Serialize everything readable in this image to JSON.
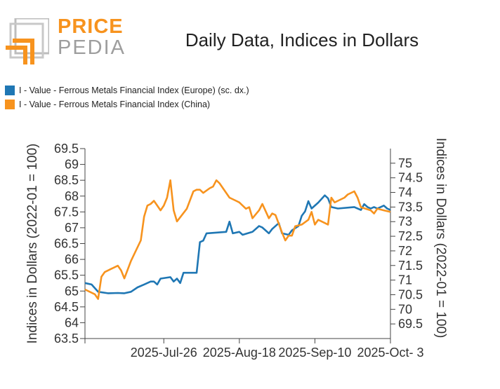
{
  "logo": {
    "line1": "PRICE",
    "line2": "PEDIA",
    "accent": "#f7931e",
    "gray": "#9e9e9e"
  },
  "title": "Daily Data, Indices in Dollars",
  "chart_data": {
    "type": "line",
    "title": "Daily Data, Indices in Dollars",
    "x_tick_labels": [
      "2025-Jul-26",
      "2025-Aug-18",
      "2025-Sep-10",
      "2025-Oct- 3"
    ],
    "x_range": [
      "2025-07-02",
      "2025-10-03"
    ],
    "y_left": {
      "label": "Indices in Dollars (2022-01 = 100)",
      "range": [
        63.5,
        69.5
      ],
      "ticks": [
        63.5,
        64,
        64.5,
        65,
        65.5,
        66,
        66.5,
        67,
        67.5,
        68,
        68.5,
        69,
        69.5
      ]
    },
    "y_right": {
      "label": "Indices in Dollars (2022-01 = 100)",
      "range": [
        69,
        75.5
      ],
      "ticks": [
        69.5,
        70,
        70.5,
        71,
        71.5,
        72,
        72.5,
        73,
        73.5,
        74,
        74.5,
        75
      ]
    },
    "grid": false,
    "legend": "top-left",
    "series": [
      {
        "name": "I - Value - Ferrous Metals Financial Index (Europe) (sc. dx.)",
        "color": "#1f77b4",
        "axis": "right",
        "points": [
          [
            "2025-07-02",
            70.9
          ],
          [
            "2025-07-04",
            70.85
          ],
          [
            "2025-07-06",
            70.6
          ],
          [
            "2025-07-09",
            70.55
          ],
          [
            "2025-07-12",
            70.56
          ],
          [
            "2025-07-14",
            70.55
          ],
          [
            "2025-07-16",
            70.6
          ],
          [
            "2025-07-18",
            70.75
          ],
          [
            "2025-07-20",
            70.85
          ],
          [
            "2025-07-22",
            70.95
          ],
          [
            "2025-07-23",
            70.95
          ],
          [
            "2025-07-24",
            70.85
          ],
          [
            "2025-07-25",
            71.05
          ],
          [
            "2025-07-28",
            71.1
          ],
          [
            "2025-07-29",
            70.95
          ],
          [
            "2025-07-30",
            71.05
          ],
          [
            "2025-07-31",
            70.9
          ],
          [
            "2025-08-01",
            71.25
          ],
          [
            "2025-08-05",
            71.25
          ],
          [
            "2025-08-06",
            72.3
          ],
          [
            "2025-08-07",
            72.35
          ],
          [
            "2025-08-08",
            72.6
          ],
          [
            "2025-08-14",
            72.65
          ],
          [
            "2025-08-15",
            73
          ],
          [
            "2025-08-16",
            72.6
          ],
          [
            "2025-08-18",
            72.65
          ],
          [
            "2025-08-19",
            72.55
          ],
          [
            "2025-08-22",
            72.65
          ],
          [
            "2025-08-24",
            72.85
          ],
          [
            "2025-08-25",
            72.8
          ],
          [
            "2025-08-27",
            72.6
          ],
          [
            "2025-08-28",
            72.75
          ],
          [
            "2025-08-30",
            72.95
          ],
          [
            "2025-08-31",
            72.6
          ],
          [
            "2025-09-02",
            72.55
          ],
          [
            "2025-09-03",
            72.7
          ],
          [
            "2025-09-05",
            72.85
          ],
          [
            "2025-09-06",
            73.2
          ],
          [
            "2025-09-07",
            73.35
          ],
          [
            "2025-09-08",
            73.7
          ],
          [
            "2025-09-09",
            73.45
          ],
          [
            "2025-09-11",
            73.65
          ],
          [
            "2025-09-13",
            73.9
          ],
          [
            "2025-09-14",
            73.8
          ],
          [
            "2025-09-15",
            73.5
          ],
          [
            "2025-09-17",
            73.45
          ],
          [
            "2025-09-22",
            73.5
          ],
          [
            "2025-09-24",
            73.4
          ],
          [
            "2025-09-25",
            73.6
          ],
          [
            "2025-09-26",
            73.5
          ],
          [
            "2025-09-27",
            73.45
          ],
          [
            "2025-09-28",
            73.5
          ],
          [
            "2025-09-29",
            73.45
          ],
          [
            "2025-09-30",
            73.5
          ],
          [
            "2025-10-01",
            73.55
          ],
          [
            "2025-10-02",
            73.45
          ],
          [
            "2025-10-03",
            73.4
          ]
        ]
      },
      {
        "name": "I - Value - Ferrous Metals Financial Index (China)",
        "color": "#f7931e",
        "axis": "left",
        "points": [
          [
            "2025-07-02",
            65.05
          ],
          [
            "2025-07-05",
            64.9
          ],
          [
            "2025-07-06",
            64.75
          ],
          [
            "2025-07-07",
            65.45
          ],
          [
            "2025-07-08",
            65.6
          ],
          [
            "2025-07-10",
            65.7
          ],
          [
            "2025-07-12",
            65.8
          ],
          [
            "2025-07-13",
            65.65
          ],
          [
            "2025-07-14",
            65.4
          ],
          [
            "2025-07-16",
            65.95
          ],
          [
            "2025-07-19",
            66.6
          ],
          [
            "2025-07-20",
            67.35
          ],
          [
            "2025-07-21",
            67.7
          ],
          [
            "2025-07-22",
            67.75
          ],
          [
            "2025-07-23",
            67.85
          ],
          [
            "2025-07-24",
            67.7
          ],
          [
            "2025-07-25",
            67.55
          ],
          [
            "2025-07-26",
            67.7
          ],
          [
            "2025-07-27",
            67.95
          ],
          [
            "2025-07-28",
            68.5
          ],
          [
            "2025-07-29",
            67.55
          ],
          [
            "2025-07-30",
            67.2
          ],
          [
            "2025-08-02",
            67.6
          ],
          [
            "2025-08-04",
            68.15
          ],
          [
            "2025-08-05",
            68.2
          ],
          [
            "2025-08-06",
            68.2
          ],
          [
            "2025-08-07",
            68.1
          ],
          [
            "2025-08-09",
            68.25
          ],
          [
            "2025-08-10",
            68.3
          ],
          [
            "2025-08-11",
            68.5
          ],
          [
            "2025-08-12",
            68.4
          ],
          [
            "2025-08-15",
            67.95
          ],
          [
            "2025-08-17",
            67.85
          ],
          [
            "2025-08-18",
            67.8
          ],
          [
            "2025-08-20",
            67.6
          ],
          [
            "2025-08-21",
            67.65
          ],
          [
            "2025-08-22",
            67.3
          ],
          [
            "2025-08-24",
            67.55
          ],
          [
            "2025-08-25",
            67.75
          ],
          [
            "2025-08-27",
            67.3
          ],
          [
            "2025-08-28",
            67.45
          ],
          [
            "2025-08-29",
            67.4
          ],
          [
            "2025-08-31",
            66.85
          ],
          [
            "2025-09-01",
            66.6
          ],
          [
            "2025-09-02",
            66.75
          ],
          [
            "2025-09-03",
            66.75
          ],
          [
            "2025-09-04",
            67.05
          ],
          [
            "2025-09-06",
            67.1
          ],
          [
            "2025-09-08",
            67.25
          ],
          [
            "2025-09-09",
            67.5
          ],
          [
            "2025-09-10",
            67.1
          ],
          [
            "2025-09-11",
            67.25
          ],
          [
            "2025-09-14",
            67.1
          ],
          [
            "2025-09-15",
            67.95
          ],
          [
            "2025-09-16",
            67.8
          ],
          [
            "2025-09-17",
            67.85
          ],
          [
            "2025-09-19",
            67.95
          ],
          [
            "2025-09-20",
            68.05
          ],
          [
            "2025-09-22",
            68.15
          ],
          [
            "2025-09-23",
            67.95
          ],
          [
            "2025-09-24",
            67.65
          ],
          [
            "2025-09-27",
            67.55
          ],
          [
            "2025-09-28",
            67.45
          ],
          [
            "2025-09-29",
            67.6
          ],
          [
            "2025-10-01",
            67.55
          ],
          [
            "2025-10-03",
            67.5
          ]
        ]
      }
    ]
  }
}
